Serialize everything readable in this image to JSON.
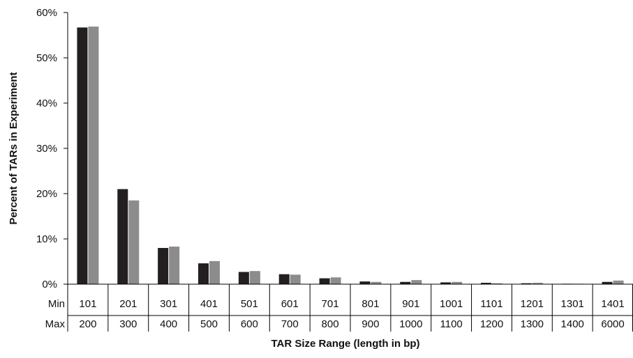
{
  "chart_data": {
    "type": "bar",
    "xlabel": "TAR Size Range (length in bp)",
    "ylabel": "Percent of TARs in Experiment",
    "ylim": [
      0,
      60
    ],
    "yticks": [
      "0%",
      "10%",
      "20%",
      "30%",
      "40%",
      "50%",
      "60%"
    ],
    "row_labels": {
      "min": "Min",
      "max": "Max"
    },
    "categories_min": [
      "101",
      "201",
      "301",
      "401",
      "501",
      "601",
      "701",
      "801",
      "901",
      "1001",
      "1101",
      "1201",
      "1301",
      "1401"
    ],
    "categories_max": [
      "200",
      "300",
      "400",
      "500",
      "600",
      "700",
      "800",
      "900",
      "1000",
      "1100",
      "1200",
      "1300",
      "1400",
      "6000"
    ],
    "series": [
      {
        "color": "#231f20",
        "values": [
          56.7,
          21.0,
          8.0,
          4.6,
          2.7,
          2.2,
          1.3,
          0.6,
          0.5,
          0.4,
          0.3,
          0.2,
          0.1,
          0.5
        ]
      },
      {
        "color": "#8c8c8c",
        "values": [
          56.9,
          18.5,
          8.3,
          5.1,
          2.9,
          2.1,
          1.5,
          0.5,
          0.9,
          0.5,
          0.2,
          0.3,
          0.1,
          0.8
        ]
      }
    ],
    "grid": false,
    "legend": "none"
  }
}
